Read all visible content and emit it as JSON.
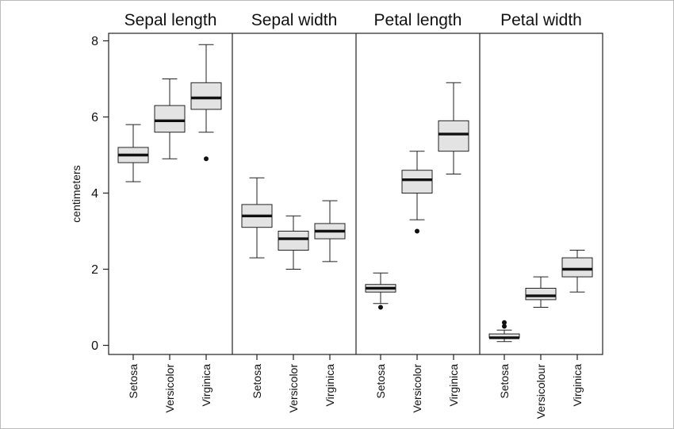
{
  "chart_data": {
    "type": "box",
    "ylabel": "centimeters",
    "ylim": [
      -0.2,
      8.2
    ],
    "yticks": [
      0,
      2,
      4,
      6,
      8
    ],
    "grid": false,
    "legend": "none",
    "colors": {
      "box_fill": "#e3e3e3",
      "stroke": "#222222",
      "median": "#111111"
    },
    "panels": [
      {
        "title": "Sepal length",
        "boxes": [
          {
            "label": "Setosa",
            "whisker_low": 4.3,
            "q1": 4.8,
            "median": 5.0,
            "q3": 5.2,
            "whisker_high": 5.8,
            "outliers": []
          },
          {
            "label": "Versicolor",
            "whisker_low": 4.9,
            "q1": 5.6,
            "median": 5.9,
            "q3": 6.3,
            "whisker_high": 7.0,
            "outliers": []
          },
          {
            "label": "Virginica",
            "whisker_low": 5.6,
            "q1": 6.2,
            "median": 6.5,
            "q3": 6.9,
            "whisker_high": 7.9,
            "outliers": [
              4.9
            ]
          }
        ]
      },
      {
        "title": "Sepal width",
        "boxes": [
          {
            "label": "Setosa",
            "whisker_low": 2.3,
            "q1": 3.1,
            "median": 3.4,
            "q3": 3.7,
            "whisker_high": 4.4,
            "outliers": []
          },
          {
            "label": "Versicolor",
            "whisker_low": 2.0,
            "q1": 2.5,
            "median": 2.8,
            "q3": 3.0,
            "whisker_high": 3.4,
            "outliers": []
          },
          {
            "label": "Virginica",
            "whisker_low": 2.2,
            "q1": 2.8,
            "median": 3.0,
            "q3": 3.2,
            "whisker_high": 3.8,
            "outliers": []
          }
        ]
      },
      {
        "title": "Petal length",
        "boxes": [
          {
            "label": "Setosa",
            "whisker_low": 1.1,
            "q1": 1.4,
            "median": 1.5,
            "q3": 1.6,
            "whisker_high": 1.9,
            "outliers": [
              1.0
            ]
          },
          {
            "label": "Versicolor",
            "whisker_low": 3.3,
            "q1": 4.0,
            "median": 4.35,
            "q3": 4.6,
            "whisker_high": 5.1,
            "outliers": [
              3.0
            ]
          },
          {
            "label": "Virginica",
            "whisker_low": 4.5,
            "q1": 5.1,
            "median": 5.55,
            "q3": 5.9,
            "whisker_high": 6.9,
            "outliers": []
          }
        ]
      },
      {
        "title": "Petal width",
        "boxes": [
          {
            "label": "Setosa",
            "whisker_low": 0.1,
            "q1": 0.2,
            "median": 0.2,
            "q3": 0.3,
            "whisker_high": 0.4,
            "outliers": [
              0.5,
              0.6
            ]
          },
          {
            "label": "Versicolour",
            "whisker_low": 1.0,
            "q1": 1.2,
            "median": 1.3,
            "q3": 1.5,
            "whisker_high": 1.8,
            "outliers": []
          },
          {
            "label": "Virginica",
            "whisker_low": 1.4,
            "q1": 1.8,
            "median": 2.0,
            "q3": 2.3,
            "whisker_high": 2.5,
            "outliers": []
          }
        ]
      }
    ]
  }
}
